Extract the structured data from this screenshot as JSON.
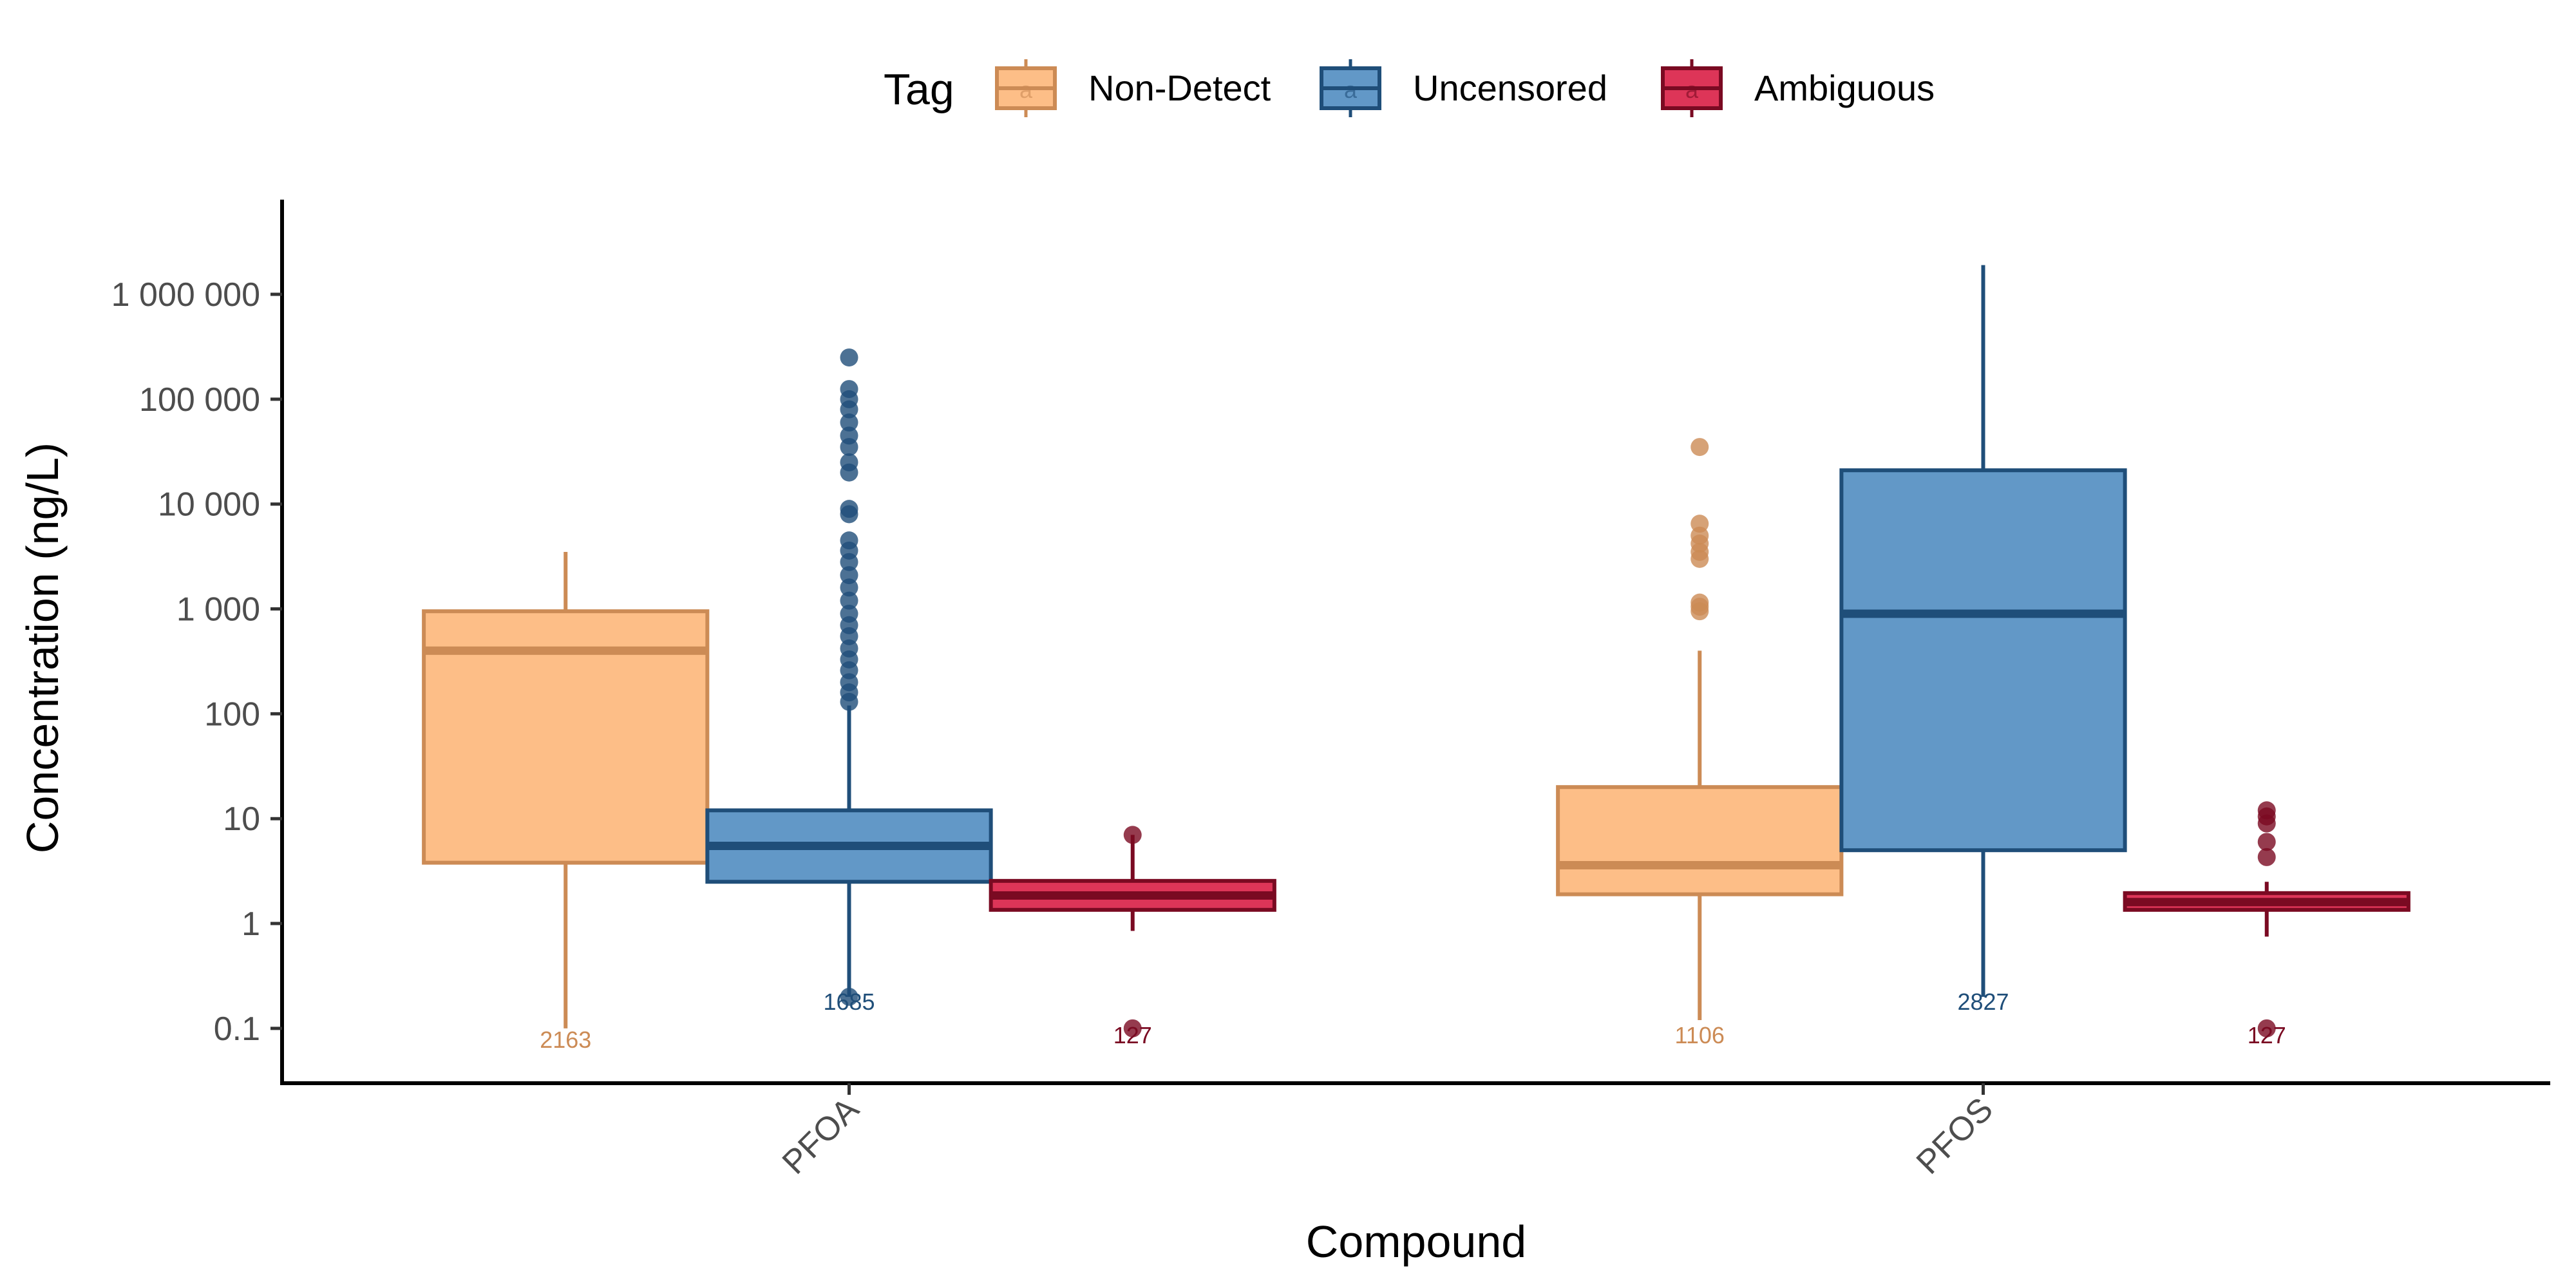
{
  "chart_data": {
    "type": "box",
    "xlabel": "Compound",
    "ylabel": "Concentration (ng/L)",
    "y_scale": "log10",
    "ylim": [
      0.03,
      8000000
    ],
    "y_ticks": [
      0.1,
      1,
      10,
      100,
      1000,
      10000,
      100000,
      1000000
    ],
    "y_tick_labels": [
      "0.1",
      "1",
      "10",
      "100",
      "1 000",
      "10 000",
      "100 000",
      "1 000 000"
    ],
    "categories": [
      "PFOA",
      "PFOS"
    ],
    "legend": {
      "title": "Tag",
      "position": "top",
      "key_glyph": "a"
    },
    "grid": false,
    "series": [
      {
        "name": "Non-Detect",
        "fill": "#fdbe87",
        "stroke": "#cc8b55",
        "boxes": [
          {
            "category": "PFOA",
            "whisker_low": 0.1,
            "q1": 3.8,
            "median": 400,
            "q3": 950,
            "whisker_high": 3500,
            "outliers": [],
            "n": "2163"
          },
          {
            "category": "PFOS",
            "whisker_low": 0.12,
            "q1": 1.9,
            "median": 3.6,
            "q3": 20,
            "whisker_high": 400,
            "outliers": [
              950,
              1050,
              1150,
              3000,
              3500,
              4200,
              5000,
              6500,
              35000
            ],
            "n": "1106"
          }
        ]
      },
      {
        "name": "Uncensored",
        "fill": "#6298c7",
        "stroke": "#1f4e79",
        "boxes": [
          {
            "category": "PFOA",
            "whisker_low": 0.2,
            "q1": 2.5,
            "median": 5.5,
            "q3": 12,
            "whisker_high": 120,
            "outliers": [
              0.2,
              130,
              160,
              200,
              260,
              330,
              420,
              550,
              700,
              900,
              1200,
              1600,
              2100,
              2800,
              3600,
              4500,
              8000,
              9000,
              20000,
              25000,
              35000,
              45000,
              60000,
              80000,
              100000,
              125000,
              250000
            ],
            "n": "1685"
          },
          {
            "category": "PFOS",
            "whisker_low": 0.2,
            "q1": 5,
            "median": 900,
            "q3": 21000,
            "whisker_high": 1900000,
            "outliers": [],
            "n": "2827"
          }
        ]
      },
      {
        "name": "Ambiguous",
        "fill": "#dd3558",
        "stroke": "#7a0a22",
        "boxes": [
          {
            "category": "PFOA",
            "whisker_low": 0.85,
            "q1": 1.35,
            "median": 1.85,
            "q3": 2.55,
            "whisker_high": 7,
            "outliers": [
              0.1,
              7
            ],
            "n": "127"
          },
          {
            "category": "PFOS",
            "whisker_low": 0.75,
            "q1": 1.35,
            "median": 1.6,
            "q3": 1.95,
            "whisker_high": 2.5,
            "outliers": [
              0.1,
              4.3,
              6,
              9,
              10.5,
              12
            ],
            "n": "127"
          }
        ]
      }
    ]
  }
}
